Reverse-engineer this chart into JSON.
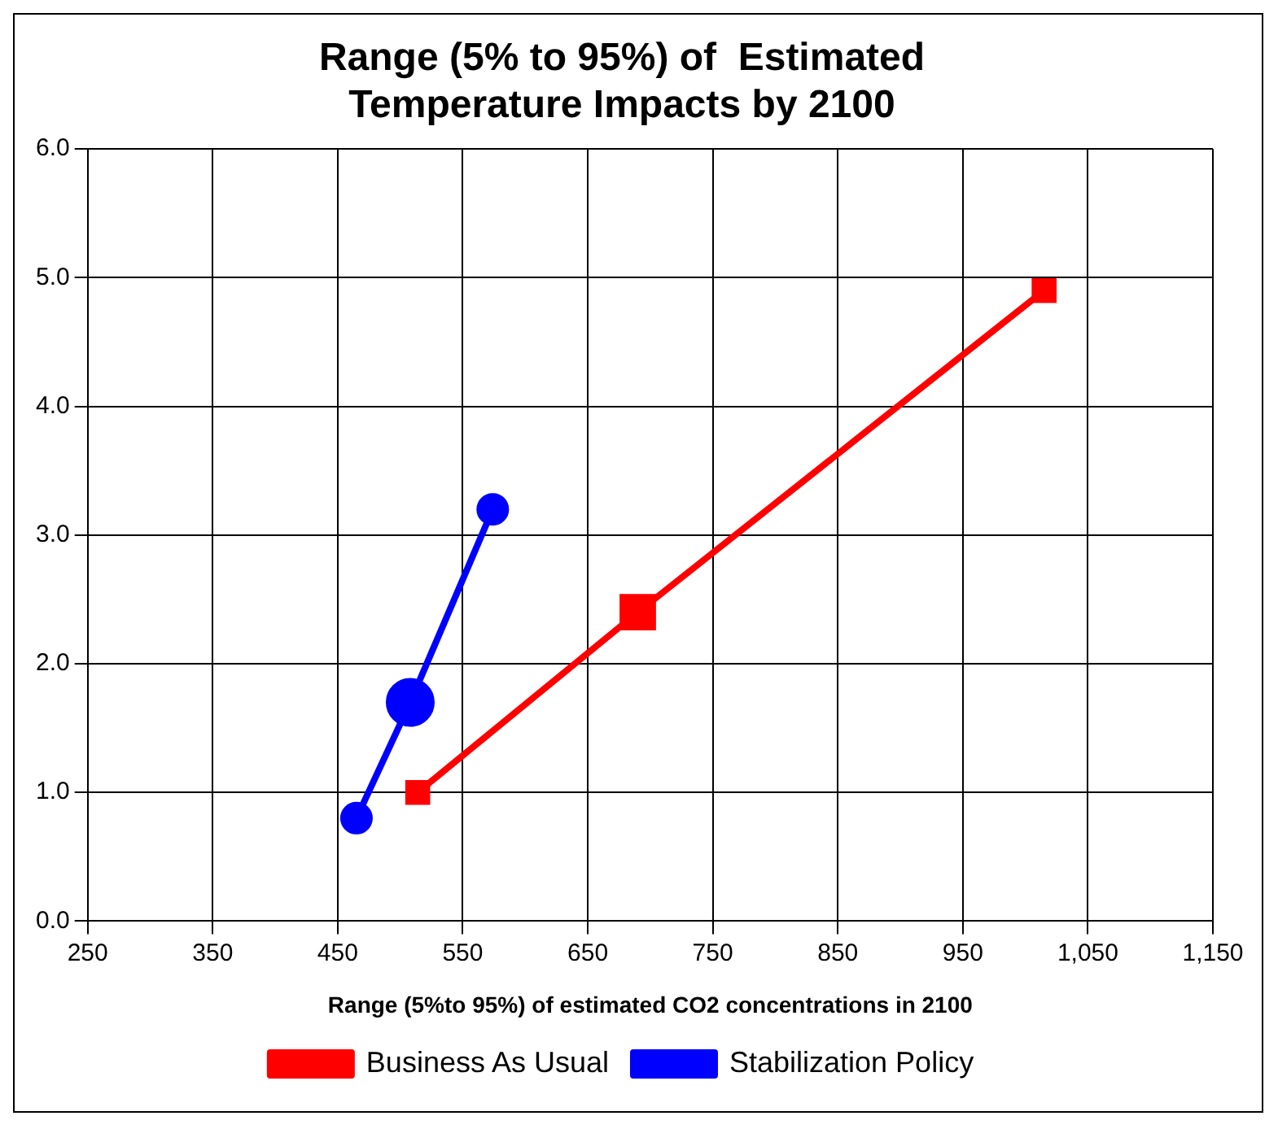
{
  "chart_data": {
    "type": "line",
    "title": "Range (5% to 95%) of  Estimated Temperature Impacts by 2100",
    "xlabel": "Range (5%to 95%) of estimated CO2 concentrations in 2100",
    "xlim": [
      250,
      1150
    ],
    "xticks": [
      250,
      350,
      450,
      550,
      650,
      750,
      850,
      950,
      {
        "value": 1050,
        "label": "1,050"
      },
      {
        "value": 1150,
        "label": "1,150"
      }
    ],
    "ylim": [
      0,
      6
    ],
    "yticks": [
      {
        "value": 0,
        "label": "0.0"
      },
      {
        "value": 1,
        "label": "1.0"
      },
      {
        "value": 2,
        "label": "2.0"
      },
      {
        "value": 3,
        "label": "3.0"
      },
      {
        "value": 4,
        "label": "4.0"
      },
      {
        "value": 5,
        "label": "5.0"
      },
      {
        "value": 6,
        "label": "6.0"
      }
    ],
    "grid": true,
    "legend": "bottom",
    "series": [
      {
        "name": "Business As Usual",
        "color": "#ff0000",
        "marker": "square",
        "x": [
          514,
          690,
          1015
        ],
        "values": [
          1.0,
          2.4,
          4.9
        ]
      },
      {
        "name": "Stabilization Policy",
        "color": "#0000ff",
        "marker": "circle",
        "x": [
          465,
          508,
          574
        ],
        "values": [
          0.8,
          1.7,
          3.2
        ]
      }
    ]
  }
}
